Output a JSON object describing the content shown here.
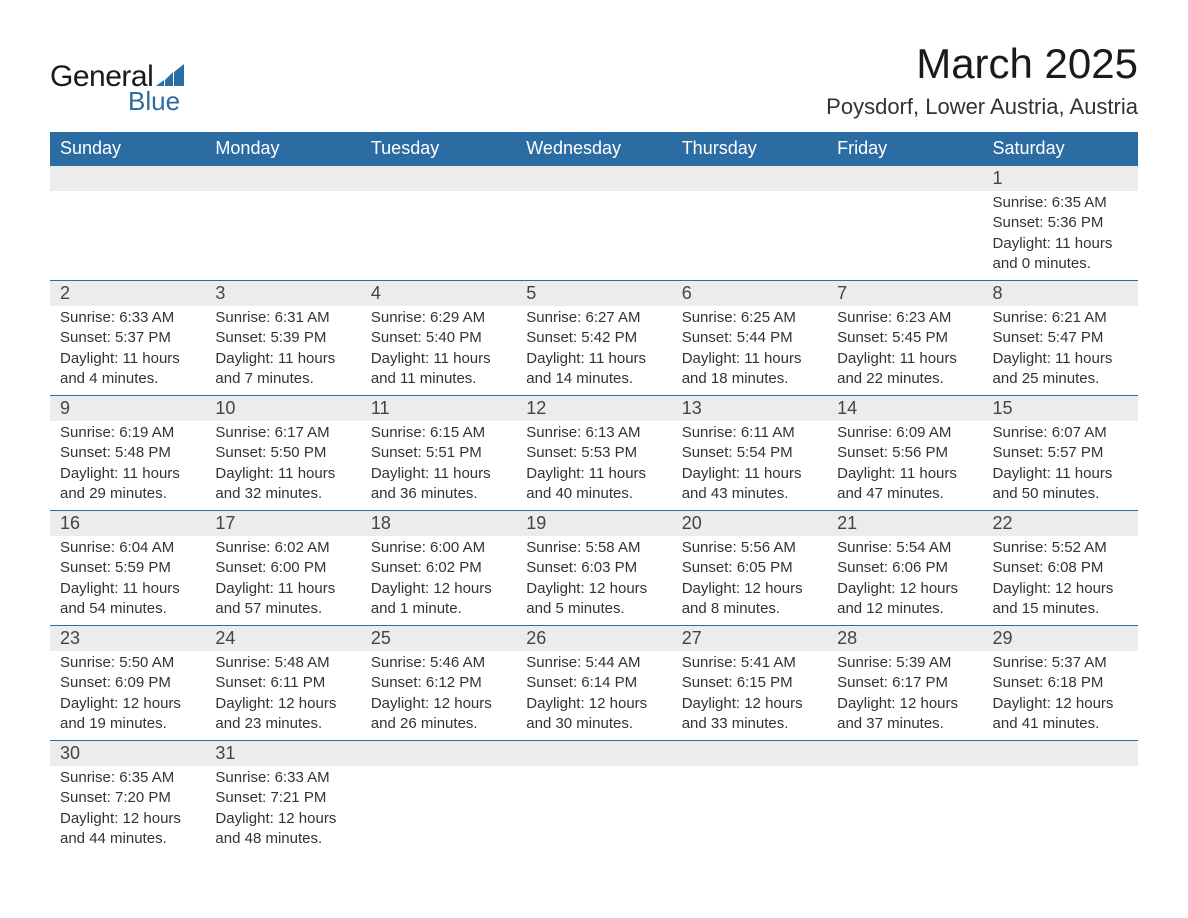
{
  "logo": {
    "general": "General",
    "blue": "Blue",
    "icon_color": "#2b6ca3"
  },
  "title": "March 2025",
  "location": "Poysdorf, Lower Austria, Austria",
  "colors": {
    "header_bg": "#2b6ca3",
    "header_text": "#ffffff",
    "daynum_bg": "#ececec",
    "border": "#2b6ca3",
    "body_text": "#333333",
    "background": "#ffffff"
  },
  "typography": {
    "title_fontsize": 42,
    "location_fontsize": 22,
    "header_fontsize": 18,
    "daynum_fontsize": 18,
    "detail_fontsize": 15
  },
  "day_headers": [
    "Sunday",
    "Monday",
    "Tuesday",
    "Wednesday",
    "Thursday",
    "Friday",
    "Saturday"
  ],
  "weeks": [
    {
      "days": [
        {
          "n": "",
          "sunrise": "",
          "sunset": "",
          "daylight": ""
        },
        {
          "n": "",
          "sunrise": "",
          "sunset": "",
          "daylight": ""
        },
        {
          "n": "",
          "sunrise": "",
          "sunset": "",
          "daylight": ""
        },
        {
          "n": "",
          "sunrise": "",
          "sunset": "",
          "daylight": ""
        },
        {
          "n": "",
          "sunrise": "",
          "sunset": "",
          "daylight": ""
        },
        {
          "n": "",
          "sunrise": "",
          "sunset": "",
          "daylight": ""
        },
        {
          "n": "1",
          "sunrise": "Sunrise: 6:35 AM",
          "sunset": "Sunset: 5:36 PM",
          "daylight": "Daylight: 11 hours and 0 minutes."
        }
      ]
    },
    {
      "days": [
        {
          "n": "2",
          "sunrise": "Sunrise: 6:33 AM",
          "sunset": "Sunset: 5:37 PM",
          "daylight": "Daylight: 11 hours and 4 minutes."
        },
        {
          "n": "3",
          "sunrise": "Sunrise: 6:31 AM",
          "sunset": "Sunset: 5:39 PM",
          "daylight": "Daylight: 11 hours and 7 minutes."
        },
        {
          "n": "4",
          "sunrise": "Sunrise: 6:29 AM",
          "sunset": "Sunset: 5:40 PM",
          "daylight": "Daylight: 11 hours and 11 minutes."
        },
        {
          "n": "5",
          "sunrise": "Sunrise: 6:27 AM",
          "sunset": "Sunset: 5:42 PM",
          "daylight": "Daylight: 11 hours and 14 minutes."
        },
        {
          "n": "6",
          "sunrise": "Sunrise: 6:25 AM",
          "sunset": "Sunset: 5:44 PM",
          "daylight": "Daylight: 11 hours and 18 minutes."
        },
        {
          "n": "7",
          "sunrise": "Sunrise: 6:23 AM",
          "sunset": "Sunset: 5:45 PM",
          "daylight": "Daylight: 11 hours and 22 minutes."
        },
        {
          "n": "8",
          "sunrise": "Sunrise: 6:21 AM",
          "sunset": "Sunset: 5:47 PM",
          "daylight": "Daylight: 11 hours and 25 minutes."
        }
      ]
    },
    {
      "days": [
        {
          "n": "9",
          "sunrise": "Sunrise: 6:19 AM",
          "sunset": "Sunset: 5:48 PM",
          "daylight": "Daylight: 11 hours and 29 minutes."
        },
        {
          "n": "10",
          "sunrise": "Sunrise: 6:17 AM",
          "sunset": "Sunset: 5:50 PM",
          "daylight": "Daylight: 11 hours and 32 minutes."
        },
        {
          "n": "11",
          "sunrise": "Sunrise: 6:15 AM",
          "sunset": "Sunset: 5:51 PM",
          "daylight": "Daylight: 11 hours and 36 minutes."
        },
        {
          "n": "12",
          "sunrise": "Sunrise: 6:13 AM",
          "sunset": "Sunset: 5:53 PM",
          "daylight": "Daylight: 11 hours and 40 minutes."
        },
        {
          "n": "13",
          "sunrise": "Sunrise: 6:11 AM",
          "sunset": "Sunset: 5:54 PM",
          "daylight": "Daylight: 11 hours and 43 minutes."
        },
        {
          "n": "14",
          "sunrise": "Sunrise: 6:09 AM",
          "sunset": "Sunset: 5:56 PM",
          "daylight": "Daylight: 11 hours and 47 minutes."
        },
        {
          "n": "15",
          "sunrise": "Sunrise: 6:07 AM",
          "sunset": "Sunset: 5:57 PM",
          "daylight": "Daylight: 11 hours and 50 minutes."
        }
      ]
    },
    {
      "days": [
        {
          "n": "16",
          "sunrise": "Sunrise: 6:04 AM",
          "sunset": "Sunset: 5:59 PM",
          "daylight": "Daylight: 11 hours and 54 minutes."
        },
        {
          "n": "17",
          "sunrise": "Sunrise: 6:02 AM",
          "sunset": "Sunset: 6:00 PM",
          "daylight": "Daylight: 11 hours and 57 minutes."
        },
        {
          "n": "18",
          "sunrise": "Sunrise: 6:00 AM",
          "sunset": "Sunset: 6:02 PM",
          "daylight": "Daylight: 12 hours and 1 minute."
        },
        {
          "n": "19",
          "sunrise": "Sunrise: 5:58 AM",
          "sunset": "Sunset: 6:03 PM",
          "daylight": "Daylight: 12 hours and 5 minutes."
        },
        {
          "n": "20",
          "sunrise": "Sunrise: 5:56 AM",
          "sunset": "Sunset: 6:05 PM",
          "daylight": "Daylight: 12 hours and 8 minutes."
        },
        {
          "n": "21",
          "sunrise": "Sunrise: 5:54 AM",
          "sunset": "Sunset: 6:06 PM",
          "daylight": "Daylight: 12 hours and 12 minutes."
        },
        {
          "n": "22",
          "sunrise": "Sunrise: 5:52 AM",
          "sunset": "Sunset: 6:08 PM",
          "daylight": "Daylight: 12 hours and 15 minutes."
        }
      ]
    },
    {
      "days": [
        {
          "n": "23",
          "sunrise": "Sunrise: 5:50 AM",
          "sunset": "Sunset: 6:09 PM",
          "daylight": "Daylight: 12 hours and 19 minutes."
        },
        {
          "n": "24",
          "sunrise": "Sunrise: 5:48 AM",
          "sunset": "Sunset: 6:11 PM",
          "daylight": "Daylight: 12 hours and 23 minutes."
        },
        {
          "n": "25",
          "sunrise": "Sunrise: 5:46 AM",
          "sunset": "Sunset: 6:12 PM",
          "daylight": "Daylight: 12 hours and 26 minutes."
        },
        {
          "n": "26",
          "sunrise": "Sunrise: 5:44 AM",
          "sunset": "Sunset: 6:14 PM",
          "daylight": "Daylight: 12 hours and 30 minutes."
        },
        {
          "n": "27",
          "sunrise": "Sunrise: 5:41 AM",
          "sunset": "Sunset: 6:15 PM",
          "daylight": "Daylight: 12 hours and 33 minutes."
        },
        {
          "n": "28",
          "sunrise": "Sunrise: 5:39 AM",
          "sunset": "Sunset: 6:17 PM",
          "daylight": "Daylight: 12 hours and 37 minutes."
        },
        {
          "n": "29",
          "sunrise": "Sunrise: 5:37 AM",
          "sunset": "Sunset: 6:18 PM",
          "daylight": "Daylight: 12 hours and 41 minutes."
        }
      ]
    },
    {
      "days": [
        {
          "n": "30",
          "sunrise": "Sunrise: 6:35 AM",
          "sunset": "Sunset: 7:20 PM",
          "daylight": "Daylight: 12 hours and 44 minutes."
        },
        {
          "n": "31",
          "sunrise": "Sunrise: 6:33 AM",
          "sunset": "Sunset: 7:21 PM",
          "daylight": "Daylight: 12 hours and 48 minutes."
        },
        {
          "n": "",
          "sunrise": "",
          "sunset": "",
          "daylight": ""
        },
        {
          "n": "",
          "sunrise": "",
          "sunset": "",
          "daylight": ""
        },
        {
          "n": "",
          "sunrise": "",
          "sunset": "",
          "daylight": ""
        },
        {
          "n": "",
          "sunrise": "",
          "sunset": "",
          "daylight": ""
        },
        {
          "n": "",
          "sunrise": "",
          "sunset": "",
          "daylight": ""
        }
      ]
    }
  ]
}
